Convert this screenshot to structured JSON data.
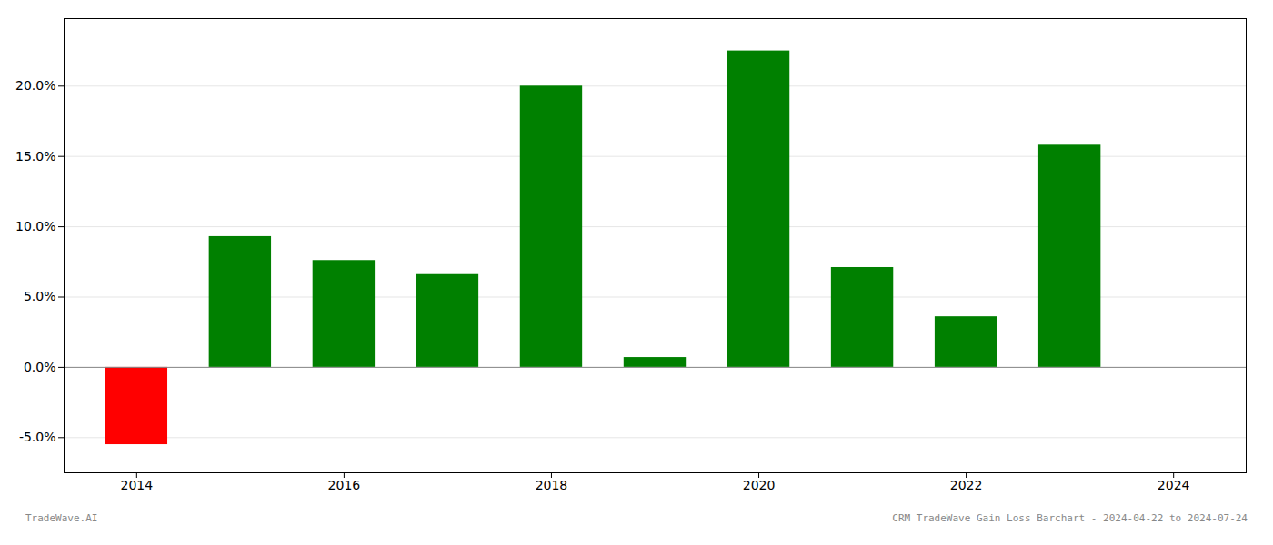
{
  "chart_data": {
    "type": "bar",
    "x": [
      2014,
      2015,
      2016,
      2017,
      2018,
      2019,
      2020,
      2021,
      2022,
      2023
    ],
    "values": [
      -0.055,
      0.093,
      0.076,
      0.066,
      0.2,
      0.007,
      0.225,
      0.071,
      0.036,
      0.158
    ],
    "colors": [
      "#ff0000",
      "#008000",
      "#008000",
      "#008000",
      "#008000",
      "#008000",
      "#008000",
      "#008000",
      "#008000",
      "#008000"
    ],
    "xlim": [
      2013.3,
      2024.7
    ],
    "xticks": [
      2014,
      2016,
      2018,
      2020,
      2022,
      2024
    ],
    "ylim": [
      -0.075,
      0.248
    ],
    "yticks": [
      {
        "value": -0.05,
        "label": "-5.0%"
      },
      {
        "value": 0.0,
        "label": "0.0%"
      },
      {
        "value": 0.05,
        "label": "5.0%"
      },
      {
        "value": 0.1,
        "label": "10.0%"
      },
      {
        "value": 0.15,
        "label": "15.0%"
      },
      {
        "value": 0.2,
        "label": "20.0%"
      }
    ],
    "grid": true,
    "annotations": [
      "TradeWave.AI",
      "CRM TradeWave Gain Loss Barchart - 2024-04-22 to 2024-07-24"
    ]
  }
}
